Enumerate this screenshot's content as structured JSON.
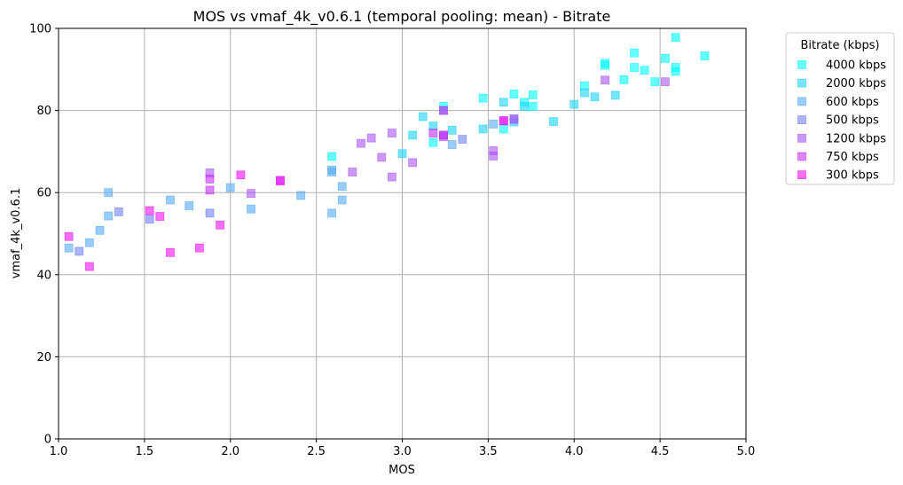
{
  "chart_data": {
    "type": "scatter",
    "title": "MOS vs vmaf_4k_v0.6.1 (temporal pooling: mean) - Bitrate",
    "xlabel": "MOS",
    "ylabel": "vmaf_4k_v0.6.1",
    "xlim": [
      1.0,
      5.0
    ],
    "ylim": [
      0,
      100
    ],
    "xticks": [
      "1.0",
      "1.5",
      "2.0",
      "2.5",
      "3.0",
      "3.5",
      "4.0",
      "4.5",
      "5.0"
    ],
    "yticks": [
      "0",
      "20",
      "40",
      "60",
      "80",
      "100"
    ],
    "grid": true,
    "legend": {
      "title": "Bitrate (kbps)",
      "placement": "outside-top-right"
    },
    "series": [
      {
        "name": "4000 kbps",
        "color": "#00ffff",
        "points": [
          [
            2.59,
            68.8
          ],
          [
            3.18,
            72.2
          ],
          [
            3.24,
            81.0
          ],
          [
            3.47,
            83.0
          ],
          [
            3.59,
            75.5
          ],
          [
            3.65,
            84.0
          ],
          [
            3.71,
            82.0
          ],
          [
            3.76,
            83.8
          ],
          [
            3.76,
            81.0
          ],
          [
            4.06,
            86.0
          ],
          [
            4.18,
            91.5
          ],
          [
            4.18,
            91.0
          ],
          [
            4.29,
            87.5
          ],
          [
            4.35,
            94.0
          ],
          [
            4.35,
            90.5
          ],
          [
            4.41,
            89.8
          ],
          [
            4.47,
            87.0
          ],
          [
            4.53,
            92.7
          ],
          [
            4.59,
            97.8
          ],
          [
            4.59,
            90.5
          ],
          [
            4.59,
            89.5
          ],
          [
            4.76,
            93.3
          ]
        ]
      },
      {
        "name": "2000 kbps",
        "color": "#1cd3f5",
        "points": [
          [
            3.0,
            69.5
          ],
          [
            3.06,
            74.0
          ],
          [
            3.12,
            78.5
          ],
          [
            3.18,
            76.2
          ],
          [
            3.29,
            75.2
          ],
          [
            3.47,
            75.5
          ],
          [
            3.59,
            82.0
          ],
          [
            3.65,
            77.2
          ],
          [
            3.71,
            81.0
          ],
          [
            3.88,
            77.3
          ],
          [
            4.0,
            81.5
          ],
          [
            4.06,
            84.3
          ],
          [
            4.12,
            83.3
          ],
          [
            4.24,
            83.7
          ]
        ]
      },
      {
        "name": "600 kbps",
        "color": "#55aaf1",
        "points": [
          [
            1.06,
            46.5
          ],
          [
            1.18,
            47.8
          ],
          [
            1.24,
            50.8
          ],
          [
            1.29,
            54.3
          ],
          [
            1.29,
            60.0
          ],
          [
            1.65,
            58.2
          ],
          [
            1.76,
            56.8
          ],
          [
            2.0,
            61.2
          ],
          [
            2.12,
            56.0
          ],
          [
            2.41,
            59.3
          ],
          [
            2.59,
            65.5
          ],
          [
            2.59,
            65.0
          ],
          [
            2.59,
            55.0
          ],
          [
            2.65,
            61.5
          ],
          [
            2.65,
            58.2
          ],
          [
            3.24,
            80.0
          ],
          [
            3.29,
            71.7
          ],
          [
            3.53,
            76.7
          ]
        ]
      },
      {
        "name": "500 kbps",
        "color": "#7080f0",
        "points": [
          [
            1.12,
            45.7
          ],
          [
            1.35,
            55.3
          ],
          [
            1.53,
            53.5
          ],
          [
            1.88,
            55.0
          ],
          [
            3.35,
            73.0
          ],
          [
            3.65,
            78.0
          ]
        ]
      },
      {
        "name": "1200 kbps",
        "color": "#aa55f2",
        "points": [
          [
            1.88,
            64.8
          ],
          [
            2.12,
            59.8
          ],
          [
            2.71,
            65.0
          ],
          [
            2.76,
            72.0
          ],
          [
            2.82,
            73.3
          ],
          [
            2.88,
            68.6
          ],
          [
            2.94,
            74.5
          ],
          [
            2.94,
            63.8
          ],
          [
            3.06,
            67.3
          ],
          [
            3.24,
            74.0
          ],
          [
            3.24,
            73.6
          ],
          [
            3.53,
            70.2
          ],
          [
            3.53,
            68.9
          ],
          [
            3.65,
            77.8
          ],
          [
            4.18,
            87.4
          ],
          [
            4.53,
            87.0
          ]
        ]
      },
      {
        "name": "750 kbps",
        "color": "#c32ff0",
        "points": [
          [
            1.88,
            63.3
          ],
          [
            1.88,
            60.6
          ],
          [
            2.29,
            63.0
          ],
          [
            3.18,
            74.5
          ],
          [
            3.24,
            74.0
          ],
          [
            3.24,
            80.0
          ],
          [
            3.59,
            77.5
          ]
        ]
      },
      {
        "name": "300 kbps",
        "color": "#ee10f0",
        "points": [
          [
            1.06,
            49.3
          ],
          [
            1.18,
            42.0
          ],
          [
            1.53,
            55.6
          ],
          [
            1.59,
            54.2
          ],
          [
            1.65,
            45.4
          ],
          [
            1.82,
            46.5
          ],
          [
            1.94,
            52.1
          ],
          [
            2.06,
            64.3
          ],
          [
            2.29,
            62.8
          ],
          [
            3.59,
            77.5
          ]
        ]
      }
    ]
  }
}
